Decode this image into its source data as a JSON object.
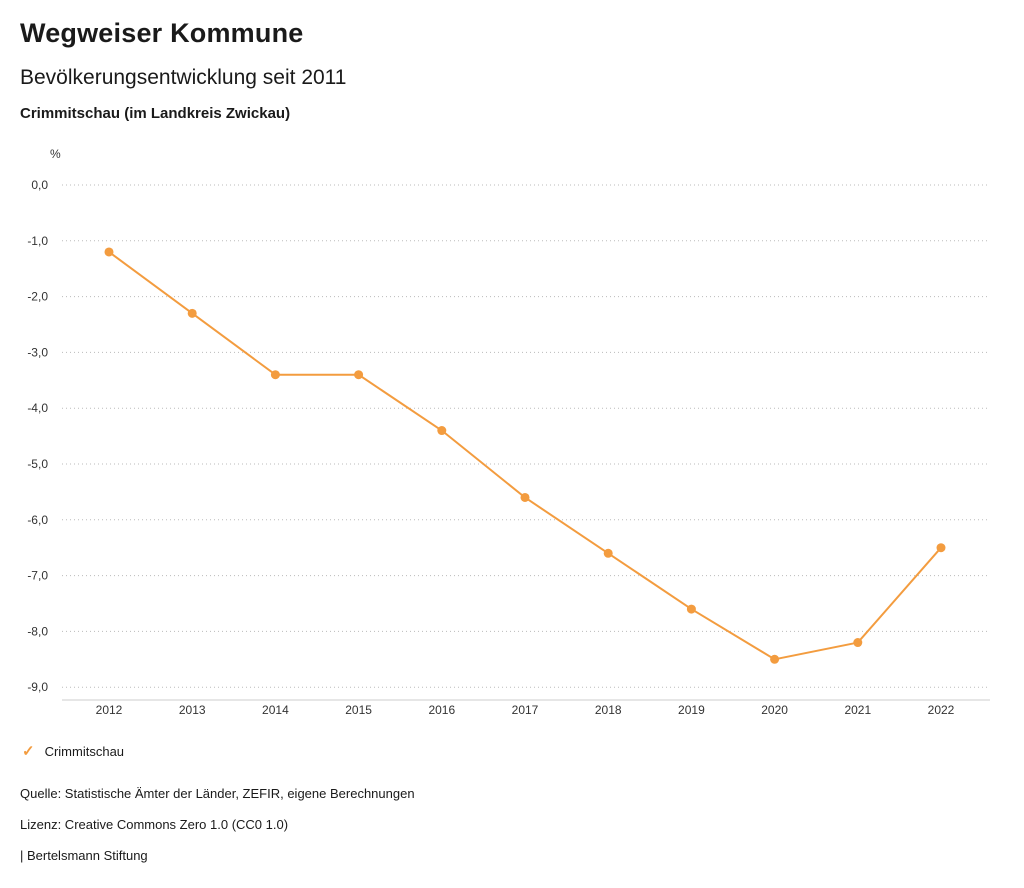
{
  "header": {
    "title": "Wegweiser Kommune",
    "subtitle": "Bevölkerungsentwicklung seit 2011",
    "region": "Crimmitschau (im Landkreis Zwickau)"
  },
  "chart_data": {
    "type": "line",
    "title": "Bevölkerungsentwicklung seit 2011",
    "unit_label": "%",
    "x": [
      "2012",
      "2013",
      "2014",
      "2015",
      "2016",
      "2017",
      "2018",
      "2019",
      "2020",
      "2021",
      "2022"
    ],
    "series": [
      {
        "name": "Crimmitschau",
        "color": "#F39C3F",
        "values": [
          -1.2,
          -2.3,
          -3.4,
          -3.4,
          -4.4,
          -5.6,
          -6.6,
          -7.6,
          -8.5,
          -8.2,
          -6.5
        ]
      }
    ],
    "ylim": [
      -9.0,
      0.0
    ],
    "y_tick_step": 1.0,
    "y_tick_labels": [
      "0,0",
      "-1,0",
      "-2,0",
      "-3,0",
      "-4,0",
      "-5,0",
      "-6,0",
      "-7,0",
      "-8,0",
      "-9,0"
    ],
    "grid": "horizontal-dotted",
    "grid_color": "#bbbbbb",
    "axis_color": "#cccccc",
    "tick_text_color": "#333333",
    "legend_position": "bottom-left"
  },
  "legend": {
    "items": [
      {
        "label": "Crimmitschau",
        "color": "#F39C3F",
        "icon": "check-icon",
        "glyph": "✓"
      }
    ]
  },
  "footer": {
    "source": "Quelle: Statistische Ämter der Länder, ZEFIR, eigene Berechnungen",
    "license": "Lizenz: Creative Commons Zero 1.0 (CC0 1.0)",
    "attribution": "| Bertelsmann Stiftung"
  }
}
